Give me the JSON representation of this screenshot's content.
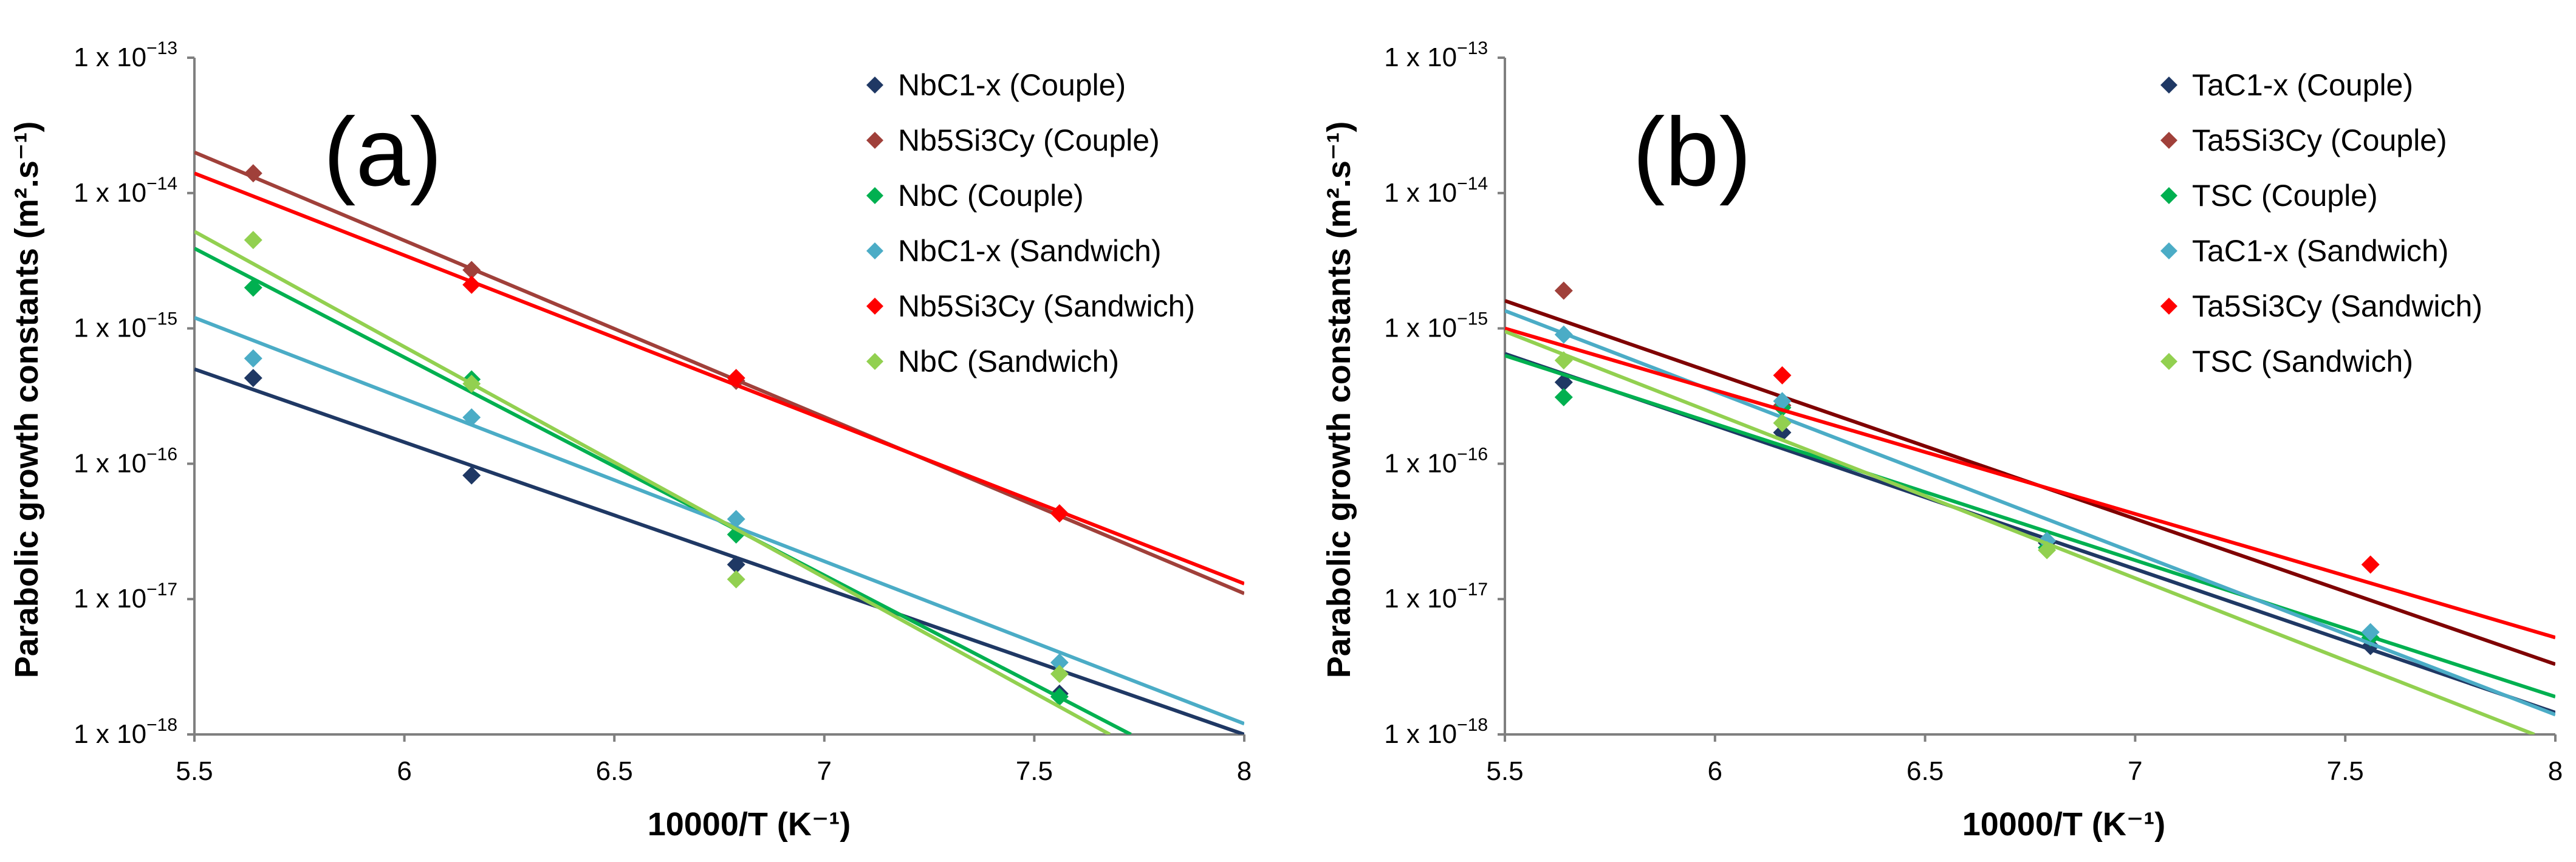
{
  "figure": {
    "panels_count": 2
  },
  "chart_data": [
    {
      "type": "scatter",
      "panel_label": "(a)",
      "xlabel": "10000/T (K⁻¹)",
      "ylabel": "Parabolic growth constants (m².s⁻¹)",
      "xlim": [
        5.5,
        8
      ],
      "ylim_log10": [
        -18,
        -13
      ],
      "x_ticks": [
        5.5,
        6,
        6.5,
        7,
        7.5,
        8
      ],
      "x_tick_labels": [
        "5.5",
        "6",
        "6.5",
        "7",
        "7.5",
        "8"
      ],
      "y_ticks_log10": [
        -13,
        -14,
        -15,
        -16,
        -17,
        -18
      ],
      "y_tick_prefix": "1 x 10",
      "y_tick_exponents": [
        "−13",
        "−14",
        "−15",
        "−16",
        "−17",
        "−18"
      ],
      "legend_position": "top-right",
      "x_points": [
        5.64,
        6.16,
        6.79,
        7.56
      ],
      "series": [
        {
          "name": "NbC1-x (Couple)",
          "color": "#1f3864",
          "y": [
            4.3e-16,
            8.2e-17,
            1.8e-17,
            2e-18
          ],
          "fit": [
            [
              5.5,
              5e-16
            ],
            [
              8,
              1e-18
            ]
          ]
        },
        {
          "name": "Nb5Si3Cy (Couple)",
          "color": "#a0403a",
          "y": [
            1.4e-14,
            2.7e-15,
            4.1e-16,
            4.3e-17
          ],
          "fit": [
            [
              5.5,
              2e-14
            ],
            [
              8,
              1.1e-17
            ]
          ]
        },
        {
          "name": "NbC (Couple)",
          "color": "#00b050",
          "y": [
            2e-15,
            4.2e-16,
            3e-17,
            1.9e-18
          ],
          "fit": [
            [
              5.5,
              3.9e-15
            ],
            [
              7.73,
              1e-18
            ]
          ]
        },
        {
          "name": "NbC1-x (Sandwich)",
          "color": "#4bacc6",
          "y": [
            6e-16,
            2.2e-16,
            3.9e-17,
            3.4e-18
          ],
          "fit": [
            [
              5.5,
              1.2e-15
            ],
            [
              8,
              1.2e-18
            ]
          ]
        },
        {
          "name": "Nb5Si3Cy (Sandwich)",
          "color": "#ff0000",
          "y": [
            null,
            2.1e-15,
            4.3e-16,
            4.3e-17
          ],
          "fit": [
            [
              5.5,
              1.4e-14
            ],
            [
              8,
              1.3e-17
            ]
          ]
        },
        {
          "name": "NbC (Sandwich)",
          "color": "#92d050",
          "y": [
            4.5e-15,
            3.9e-16,
            1.4e-17,
            2.8e-18
          ],
          "fit": [
            [
              5.5,
              5.2e-15
            ],
            [
              7.68,
              1e-18
            ]
          ]
        }
      ]
    },
    {
      "type": "scatter",
      "panel_label": "(b)",
      "xlabel": "10000/T (K⁻¹)",
      "ylabel": "Parabolic growth constants (m².s⁻¹)",
      "xlim": [
        5.5,
        8
      ],
      "ylim_log10": [
        -18,
        -13
      ],
      "x_ticks": [
        5.5,
        6,
        6.5,
        7,
        7.5,
        8
      ],
      "x_tick_labels": [
        "5.5",
        "6",
        "6.5",
        "7",
        "7.5",
        "8"
      ],
      "y_ticks_log10": [
        -13,
        -14,
        -15,
        -16,
        -17,
        -18
      ],
      "y_tick_prefix": "1 x 10",
      "y_tick_exponents": [
        "−13",
        "−14",
        "−15",
        "−16",
        "−17",
        "−18"
      ],
      "legend_position": "top-right",
      "x_points": [
        5.64,
        6.16,
        6.79,
        7.56
      ],
      "series": [
        {
          "name": "TaC1-x (Couple)",
          "color": "#1f3864",
          "y": [
            4e-16,
            1.7e-16,
            2.6e-17,
            4.5e-18
          ],
          "fit": [
            [
              5.5,
              6.5e-16
            ],
            [
              8,
              1.45e-18
            ]
          ]
        },
        {
          "name": "Ta5Si3Cy (Couple)",
          "color": "#a0403a",
          "y": [
            1.9e-15,
            2.7e-16,
            2.7e-17,
            null
          ],
          "fit": [
            [
              5.5,
              1.6e-15
            ],
            [
              8,
              3.3e-18
            ]
          ],
          "fit_color": "#7f0000"
        },
        {
          "name": "TSC (Couple)",
          "color": "#00b050",
          "y": [
            3.1e-16,
            2.6e-16,
            2.4e-17,
            5.2e-18
          ],
          "fit": [
            [
              5.5,
              6.3e-16
            ],
            [
              8,
              1.9e-18
            ]
          ]
        },
        {
          "name": "TaC1-x (Sandwich)",
          "color": "#4bacc6",
          "y": [
            9e-16,
            2.9e-16,
            2.7e-17,
            5.7e-18
          ],
          "fit": [
            [
              5.5,
              1.35e-15
            ],
            [
              8,
              1.4e-18
            ]
          ]
        },
        {
          "name": "Ta5Si3Cy (Sandwich)",
          "color": "#ff0000",
          "y": [
            null,
            4.5e-16,
            null,
            1.8e-17
          ],
          "fit": [
            [
              5.5,
              1e-15
            ],
            [
              8,
              5.2e-18
            ]
          ]
        },
        {
          "name": "TSC (Sandwich)",
          "color": "#92d050",
          "y": [
            5.8e-16,
            2e-16,
            2.3e-17,
            null
          ],
          "fit": [
            [
              5.5,
              9.5e-16
            ],
            [
              7.95,
              1e-18
            ]
          ]
        }
      ]
    }
  ]
}
